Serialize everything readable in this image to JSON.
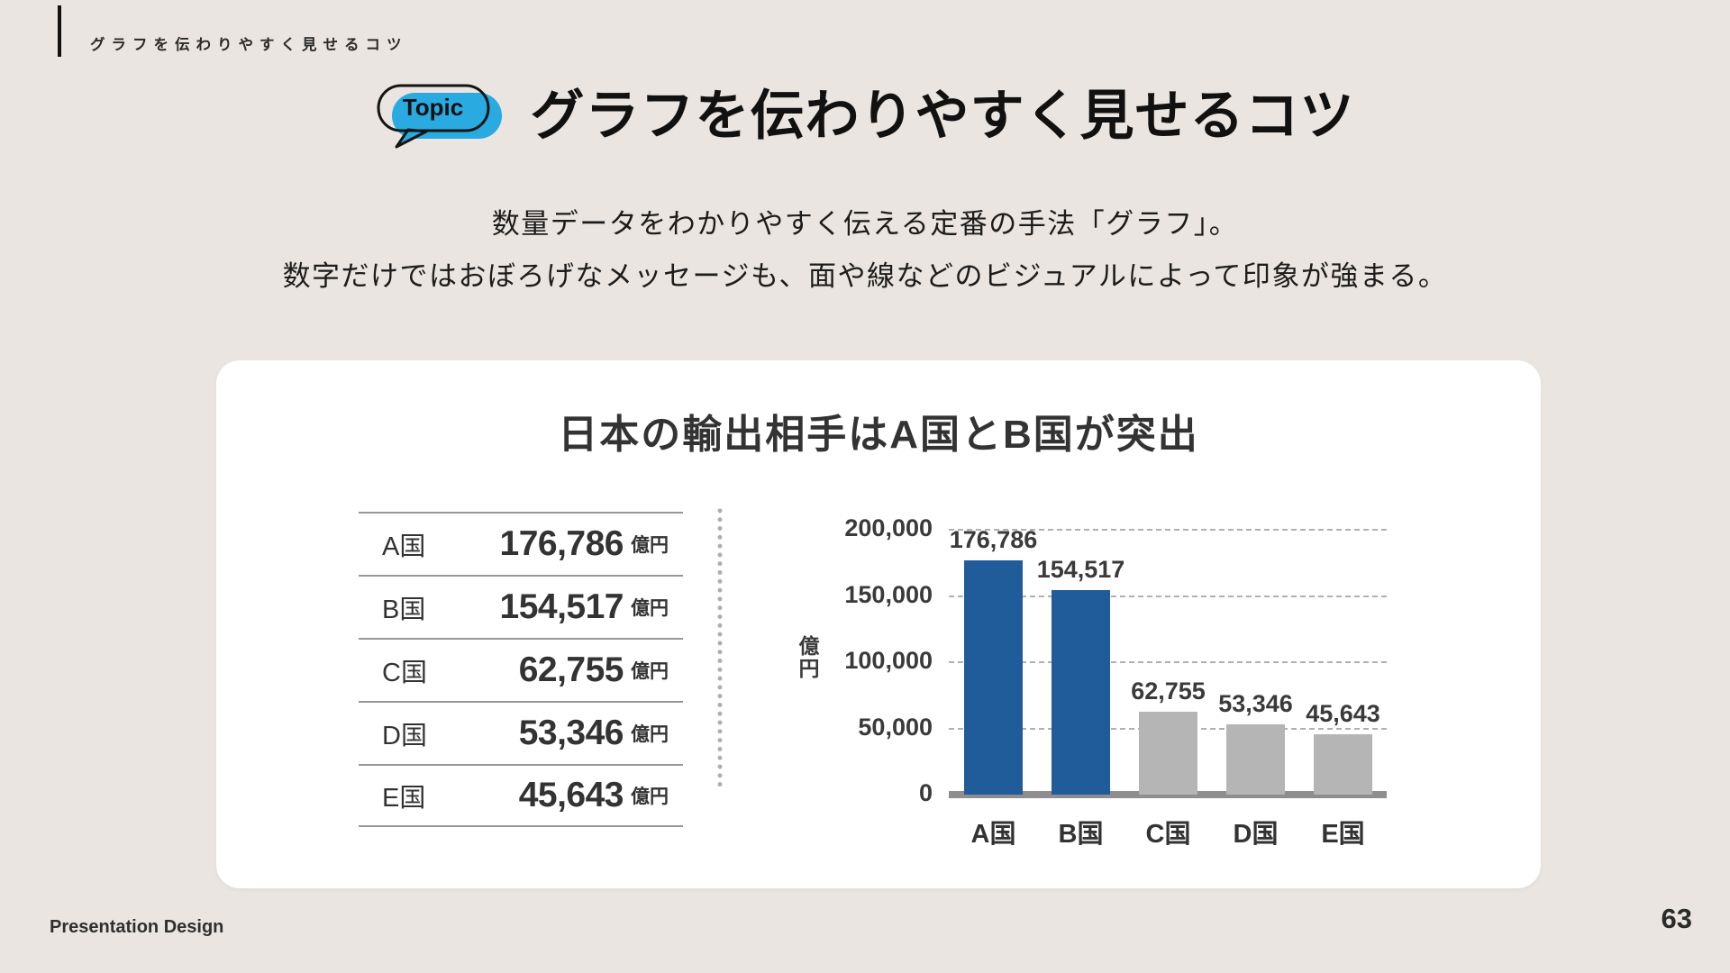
{
  "slide": {
    "background": "#EAE5E0",
    "eyebrow": "グラフを伝わりやすく見せるコツ",
    "footer": "Presentation Design",
    "page_number": "63"
  },
  "title_block": {
    "topic_label": "Topic",
    "topic_color": "#29ABE2",
    "title": "グラフを伝わりやすく見せるコツ"
  },
  "intro": {
    "line1": "数量データをわかりやすく伝える定番の手法「グラフ」。",
    "line2": "数字だけではおぼろげなメッセージも、面や線などのビジュアルによって印象が強まる。"
  },
  "card": {
    "title": "日本の輸出相手はA国とB国が突出",
    "table": [
      {
        "label": "A国",
        "value": "176,786",
        "unit": "億円"
      },
      {
        "label": "B国",
        "value": "154,517",
        "unit": "億円"
      },
      {
        "label": "C国",
        "value": "62,755",
        "unit": "億円"
      },
      {
        "label": "D国",
        "value": "53,346",
        "unit": "億円"
      },
      {
        "label": "E国",
        "value": "45,643",
        "unit": "億円"
      }
    ]
  },
  "chart_data": {
    "type": "bar",
    "title": "日本の輸出相手はA国とB国が突出",
    "categories": [
      "A国",
      "B国",
      "C国",
      "D国",
      "E国"
    ],
    "values": [
      176786,
      154517,
      62755,
      53346,
      45643
    ],
    "value_labels": [
      "176,786",
      "154,517",
      "62,755",
      "53,346",
      "45,643"
    ],
    "series_colors": [
      "#1F5C99",
      "#1F5C99",
      "#B5B5B5",
      "#B5B5B5",
      "#B5B5B5"
    ],
    "highlight_color": "#1F5C99",
    "muted_color": "#B5B5B5",
    "ylabel": "億円",
    "yticks": [
      0,
      50000,
      100000,
      150000,
      200000
    ],
    "ytick_labels": [
      "0",
      "50,000",
      "100,000",
      "150,000",
      "200,000"
    ],
    "ylim": [
      0,
      200000
    ],
    "grid": "horizontal-dashed",
    "legend": "none"
  }
}
